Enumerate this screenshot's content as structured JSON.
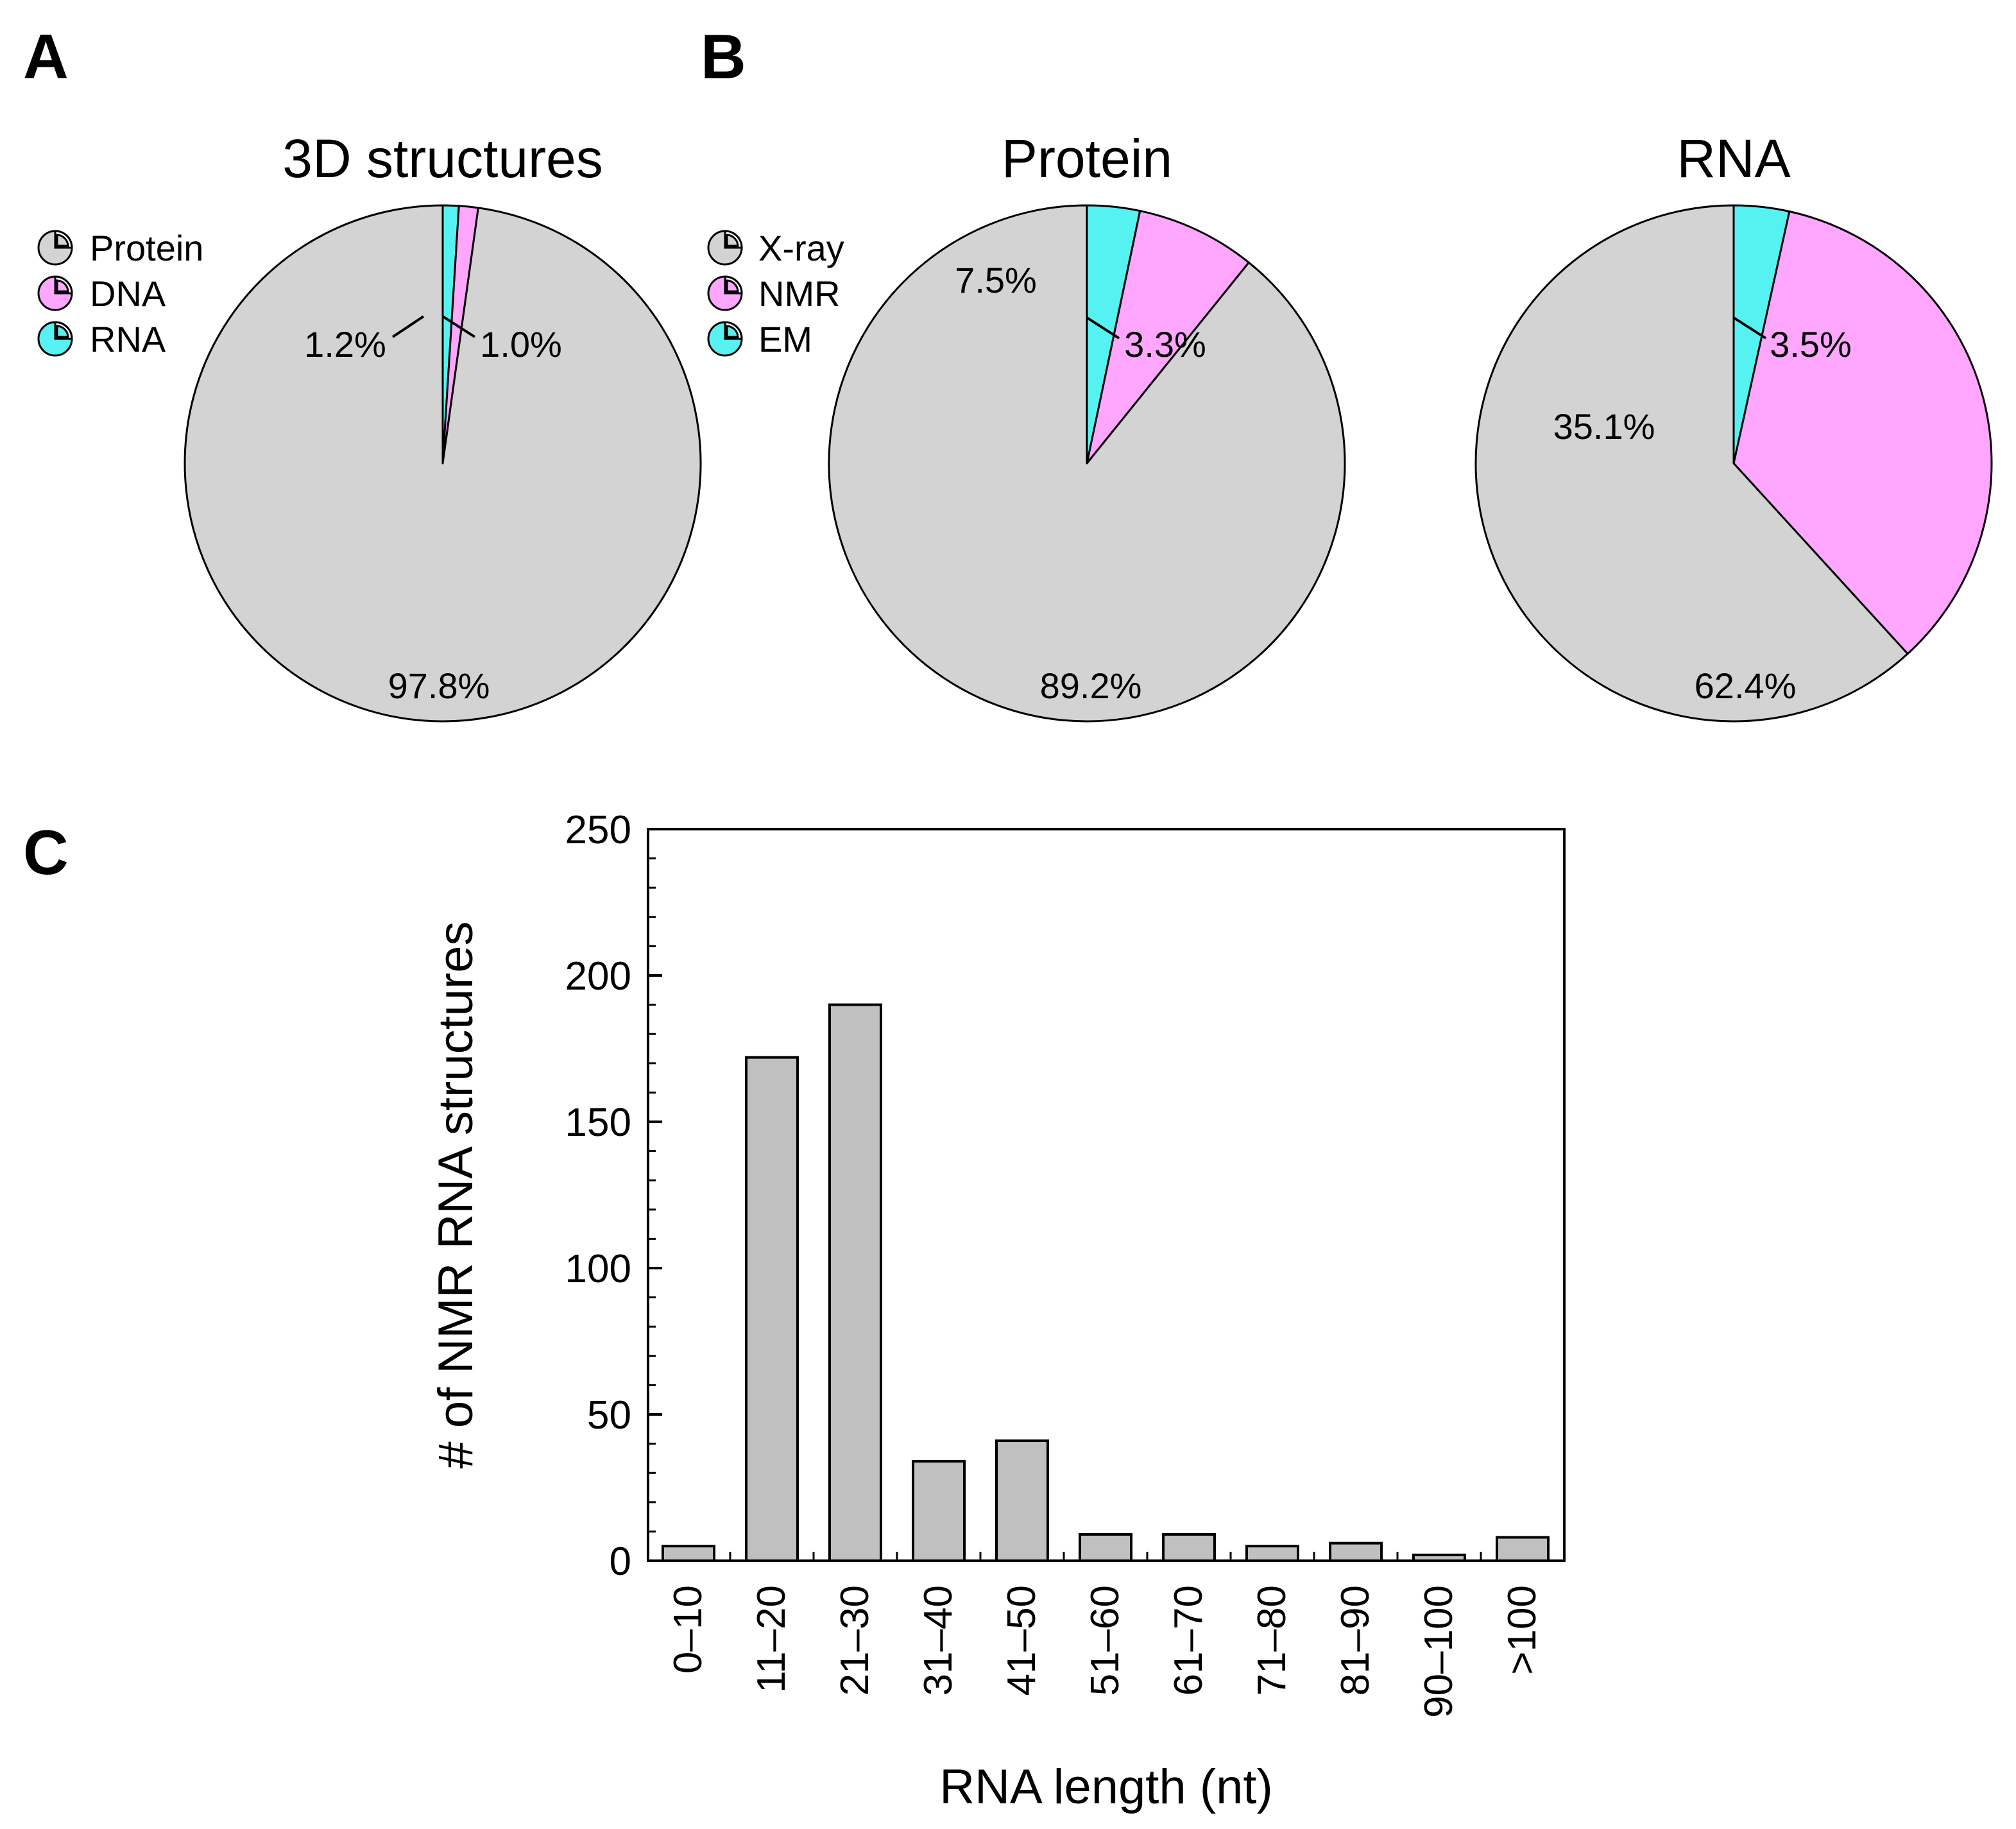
{
  "panels": {
    "a": "A",
    "b": "B",
    "c": "C"
  },
  "colors": {
    "gray": "#d3d3d3",
    "pink": "#ffa6ff",
    "cyan": "#56f2f2",
    "bar": "#c0c0c0",
    "stroke": "#000000"
  },
  "chart_data": [
    {
      "type": "pie",
      "title": "3D structures",
      "legend": [
        "Protein",
        "DNA",
        "RNA"
      ],
      "slices": [
        {
          "name": "Protein",
          "value": 97.8,
          "label": "97.8%"
        },
        {
          "name": "DNA",
          "value": 1.2,
          "label": "1.2%"
        },
        {
          "name": "RNA",
          "value": 1.0,
          "label": "1.0%"
        }
      ]
    },
    {
      "type": "pie",
      "title": "Protein",
      "legend": [
        "X-ray",
        "NMR",
        "EM"
      ],
      "slices": [
        {
          "name": "X-ray",
          "value": 89.2,
          "label": "89.2%"
        },
        {
          "name": "NMR",
          "value": 7.5,
          "label": "7.5%"
        },
        {
          "name": "EM",
          "value": 3.3,
          "label": "3.3%"
        }
      ]
    },
    {
      "type": "pie",
      "title": "RNA",
      "slices": [
        {
          "name": "X-ray",
          "value": 62.4,
          "label": "62.4%"
        },
        {
          "name": "NMR",
          "value": 35.1,
          "label": "35.1%"
        },
        {
          "name": "EM",
          "value": 3.5,
          "label": "3.5%"
        }
      ]
    },
    {
      "type": "bar",
      "categories": [
        "0–10",
        "11–20",
        "21–30",
        "31–40",
        "41–50",
        "51–60",
        "61–70",
        "71–80",
        "81–90",
        "90–100",
        ">100"
      ],
      "values": [
        5,
        172,
        190,
        34,
        41,
        9,
        9,
        5,
        6,
        2,
        8
      ],
      "xlabel": "RNA length (nt)",
      "ylabel": "# of NMR RNA structures",
      "ylim": [
        0,
        250
      ],
      "yticks": [
        0,
        50,
        100,
        150,
        200,
        250
      ],
      "grid": false
    }
  ]
}
